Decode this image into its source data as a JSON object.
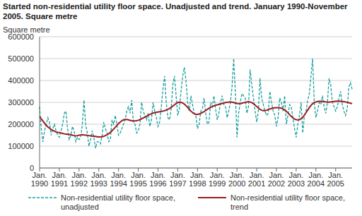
{
  "chart_data": {
    "type": "line",
    "title": "Started non-residential utility floor space. Unadjusted and trend. January 1990-November 2005. Square metre",
    "y_label": "Square metre",
    "grid": true,
    "ylim": [
      0,
      600000
    ],
    "yticks": [
      0,
      100000,
      200000,
      300000,
      400000,
      500000,
      600000
    ],
    "categories": [
      "Jan. 1990",
      null,
      null,
      null,
      null,
      null,
      null,
      null,
      null,
      null,
      null,
      null,
      "Jan. 1991",
      null,
      null,
      null,
      null,
      null,
      null,
      null,
      null,
      null,
      null,
      null,
      "Jan. 1992",
      null,
      null,
      null,
      null,
      null,
      null,
      null,
      null,
      null,
      null,
      null,
      "Jan. 1993",
      null,
      null,
      null,
      null,
      null,
      null,
      null,
      null,
      null,
      null,
      null,
      "Jan. 1994",
      null,
      null,
      null,
      null,
      null,
      null,
      null,
      null,
      null,
      null,
      null,
      "Jan. 1995",
      null,
      null,
      null,
      null,
      null,
      null,
      null,
      null,
      null,
      null,
      null,
      "Jan. 1996",
      null,
      null,
      null,
      null,
      null,
      null,
      null,
      null,
      null,
      null,
      null,
      "Jan. 1997",
      null,
      null,
      null,
      null,
      null,
      null,
      null,
      null,
      null,
      null,
      null,
      "Jan. 1998",
      null,
      null,
      null,
      null,
      null,
      null,
      null,
      null,
      null,
      null,
      null,
      "Jan. 1999",
      null,
      null,
      null,
      null,
      null,
      null,
      null,
      null,
      null,
      null,
      null,
      "Jan. 2000",
      null,
      null,
      null,
      null,
      null,
      null,
      null,
      null,
      null,
      null,
      null,
      "Jan. 2001",
      null,
      null,
      null,
      null,
      null,
      null,
      null,
      null,
      null,
      null,
      null,
      "Jan. 2002",
      null,
      null,
      null,
      null,
      null,
      null,
      null,
      null,
      null,
      null,
      null,
      "Jan. 2003",
      null,
      null,
      null,
      null,
      null,
      null,
      null,
      null,
      null,
      null,
      null,
      "Jan. 2004",
      null,
      null,
      null,
      null,
      null,
      null,
      null,
      null,
      null,
      null,
      null,
      "Jan. 2005",
      null,
      null,
      null,
      null,
      null,
      null,
      null,
      null,
      null,
      null
    ],
    "series": [
      {
        "name": "Non-residential utility floor space, unadjusted",
        "color": "#1a9e9e",
        "line_style": "dashed",
        "values": [
          280000,
          180000,
          120000,
          170000,
          200000,
          230000,
          210000,
          150000,
          180000,
          200000,
          170000,
          150000,
          140000,
          170000,
          200000,
          250000,
          260000,
          180000,
          130000,
          150000,
          190000,
          170000,
          120000,
          140000,
          130000,
          140000,
          200000,
          310000,
          200000,
          160000,
          100000,
          130000,
          170000,
          140000,
          90000,
          120000,
          120000,
          110000,
          150000,
          210000,
          180000,
          160000,
          120000,
          130000,
          220000,
          200000,
          240000,
          200000,
          150000,
          160000,
          180000,
          200000,
          220000,
          260000,
          280000,
          250000,
          310000,
          210000,
          200000,
          160000,
          170000,
          200000,
          300000,
          260000,
          240000,
          220000,
          250000,
          190000,
          220000,
          300000,
          260000,
          230000,
          190000,
          210000,
          280000,
          360000,
          420000,
          300000,
          230000,
          220000,
          270000,
          380000,
          420000,
          330000,
          240000,
          270000,
          350000,
          420000,
          460000,
          400000,
          300000,
          260000,
          330000,
          290000,
          250000,
          240000,
          180000,
          200000,
          260000,
          270000,
          320000,
          250000,
          200000,
          210000,
          300000,
          280000,
          330000,
          270000,
          220000,
          250000,
          300000,
          330000,
          290000,
          280000,
          230000,
          260000,
          300000,
          370000,
          500000,
          350000,
          140000,
          250000,
          300000,
          340000,
          330000,
          320000,
          250000,
          280000,
          450000,
          380000,
          320000,
          260000,
          210000,
          260000,
          410000,
          320000,
          290000,
          260000,
          240000,
          250000,
          350000,
          300000,
          260000,
          240000,
          190000,
          230000,
          320000,
          300000,
          260000,
          330000,
          200000,
          240000,
          290000,
          280000,
          230000,
          180000,
          140000,
          200000,
          240000,
          300000,
          160000,
          240000,
          260000,
          310000,
          340000,
          420000,
          500000,
          300000,
          230000,
          260000,
          300000,
          290000,
          330000,
          280000,
          250000,
          300000,
          410000,
          380000,
          300000,
          280000,
          260000,
          280000,
          320000,
          350000,
          290000,
          260000,
          240000,
          270000,
          370000,
          390000,
          360000
        ]
      },
      {
        "name": "Non-residential utility floor space, trend",
        "color": "#9b1b1f",
        "line_style": "solid",
        "values": [
          235000,
          225000,
          215000,
          205000,
          195000,
          188000,
          182000,
          176000,
          172000,
          168000,
          165000,
          163000,
          162000,
          160000,
          158000,
          156000,
          155000,
          154000,
          153000,
          152000,
          150000,
          148000,
          147000,
          148000,
          150000,
          151000,
          152000,
          151000,
          150000,
          149000,
          148000,
          147000,
          146000,
          145000,
          144000,
          143000,
          142000,
          142000,
          143000,
          145000,
          148000,
          152000,
          157000,
          163000,
          170000,
          178000,
          186000,
          195000,
          203000,
          210000,
          216000,
          220000,
          222000,
          222000,
          220000,
          218000,
          216000,
          215000,
          215000,
          216000,
          218000,
          221000,
          225000,
          229000,
          233000,
          237000,
          241000,
          245000,
          248000,
          251000,
          253000,
          255000,
          256000,
          257000,
          258000,
          260000,
          262000,
          265000,
          268000,
          272000,
          277000,
          283000,
          289000,
          295000,
          299000,
          301000,
          300000,
          297000,
          292000,
          285000,
          277000,
          268000,
          260000,
          253000,
          248000,
          245000,
          245000,
          247000,
          250000,
          254000,
          258000,
          263000,
          268000,
          273000,
          277000,
          281000,
          284000,
          287000,
          289000,
          291000,
          293000,
          295000,
          297000,
          299000,
          300000,
          301000,
          302000,
          301000,
          299000,
          297000,
          295000,
          294000,
          294000,
          296000,
          298000,
          300000,
          302000,
          303000,
          302000,
          299000,
          294000,
          288000,
          281000,
          274000,
          268000,
          264000,
          262000,
          262000,
          264000,
          267000,
          270000,
          272000,
          274000,
          275000,
          276000,
          276000,
          275000,
          273000,
          270000,
          265000,
          259000,
          252000,
          244000,
          236000,
          229000,
          224000,
          221000,
          220000,
          221000,
          225000,
          232000,
          242000,
          253000,
          265000,
          276000,
          286000,
          294000,
          299000,
          302000,
          304000,
          305000,
          305000,
          304000,
          303000,
          302000,
          301000,
          301000,
          302000,
          303000,
          304000,
          305000,
          306000,
          306000,
          305000,
          304000,
          303000,
          302000,
          300000,
          298000,
          296000,
          294000
        ]
      }
    ]
  }
}
